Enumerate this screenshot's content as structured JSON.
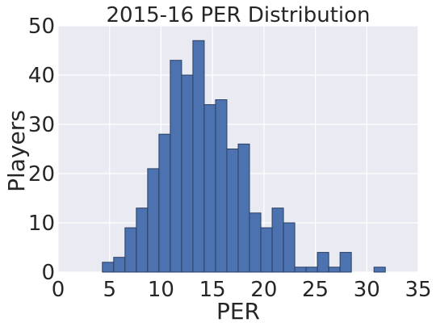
{
  "chart_data": {
    "type": "bar",
    "title": "2015-16 PER Distribution",
    "xlabel": "PER",
    "ylabel": "Players",
    "xlim": [
      0,
      35
    ],
    "ylim": [
      0,
      50
    ],
    "x_ticks": [
      0,
      5,
      10,
      15,
      20,
      25,
      30,
      35
    ],
    "y_ticks": [
      0,
      10,
      20,
      30,
      40,
      50
    ],
    "grid": true,
    "bin_width": 1.1,
    "bins": [
      {
        "x0": 4.3,
        "count": 2
      },
      {
        "x0": 5.4,
        "count": 3
      },
      {
        "x0": 6.5,
        "count": 9
      },
      {
        "x0": 7.6,
        "count": 13
      },
      {
        "x0": 8.7,
        "count": 21
      },
      {
        "x0": 9.8,
        "count": 28
      },
      {
        "x0": 10.9,
        "count": 43
      },
      {
        "x0": 12.0,
        "count": 40
      },
      {
        "x0": 13.1,
        "count": 47
      },
      {
        "x0": 14.2,
        "count": 34
      },
      {
        "x0": 15.3,
        "count": 35
      },
      {
        "x0": 16.4,
        "count": 25
      },
      {
        "x0": 17.5,
        "count": 26
      },
      {
        "x0": 18.6,
        "count": 12
      },
      {
        "x0": 19.7,
        "count": 9
      },
      {
        "x0": 20.8,
        "count": 13
      },
      {
        "x0": 21.9,
        "count": 10
      },
      {
        "x0": 23.0,
        "count": 1
      },
      {
        "x0": 24.1,
        "count": 1
      },
      {
        "x0": 25.2,
        "count": 4
      },
      {
        "x0": 26.3,
        "count": 1
      },
      {
        "x0": 27.4,
        "count": 4
      },
      {
        "x0": 28.5,
        "count": 0
      },
      {
        "x0": 29.6,
        "count": 0
      },
      {
        "x0": 30.7,
        "count": 1
      }
    ],
    "colors": {
      "bar_fill": "#4c72b0",
      "bar_edge": "#2b3f63",
      "plot_background": "#eaeaf2",
      "grid": "#ffffff",
      "text": "#262626"
    }
  }
}
